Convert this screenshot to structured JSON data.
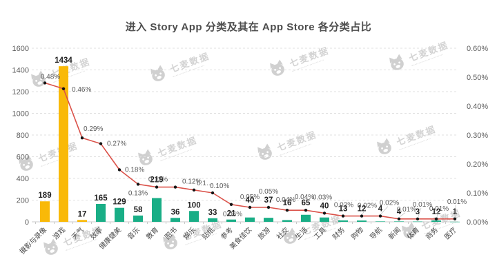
{
  "watermark": {
    "text": "七麦数据"
  },
  "chart_data": {
    "type": "bar+line",
    "title": "进入 Story App 分类及其在 App Store 各分类占比",
    "legend": "none",
    "grid": "dashed-horizontal",
    "categories": [
      "摄影与录像",
      "游戏",
      "天气",
      "效率",
      "健康健美",
      "音乐",
      "教育",
      "图书",
      "娱乐",
      "贴纸",
      "参考",
      "美食佳饮",
      "旅游",
      "社交",
      "生活",
      "工具",
      "财务",
      "购物",
      "导航",
      "新闻",
      "体育",
      "商务",
      "医疗"
    ],
    "highlighted_categories": [
      "摄影与录像",
      "游戏",
      "天气"
    ],
    "series": [
      {
        "type": "bar",
        "values": [
          189,
          1434,
          17,
          165,
          129,
          58,
          219,
          36,
          100,
          33,
          21,
          40,
          37,
          16,
          65,
          40,
          13,
          12,
          4,
          4,
          3,
          12,
          1
        ]
      },
      {
        "type": "line",
        "values": [
          0.48,
          0.46,
          0.29,
          0.27,
          0.18,
          0.13,
          0.12,
          0.12,
          0.11,
          0.1,
          0.06,
          0.05,
          0.05,
          0.04,
          0.04,
          0.03,
          0.02,
          0.02,
          0.02,
          0.01,
          0.01,
          0.01,
          0.01
        ],
        "labels": [
          "0.48%",
          "0.46%",
          "0.29%",
          "0.27%",
          "0.18%",
          "0.13%",
          "0.12%",
          "0.12%",
          "0.1…",
          "0.10%",
          "0.06%",
          "0.05%",
          "0.05%",
          "0.04%",
          "0.04%",
          "0.03%",
          "0.02%",
          "0.02%",
          "0.02%",
          "0.01%",
          "0.01%",
          "0.01%",
          "0.01%"
        ]
      }
    ],
    "left_axis": {
      "min": 0,
      "max": 1600,
      "ticks": [
        "0",
        "200",
        "400",
        "600",
        "800",
        "1000",
        "1200",
        "1400",
        "1600"
      ]
    },
    "right_axis": {
      "min": 0,
      "max": 0.6,
      "ticks": [
        "0.00%",
        "0.10%",
        "0.20%",
        "0.30%",
        "0.40%",
        "0.50%",
        "0.60%"
      ]
    },
    "colors": {
      "background": "#ffffff",
      "title": "#4d4d4d",
      "bar_highlight": "#F9B908",
      "bar_default": "#19AE86",
      "line": "#DB524A",
      "marker": "#141414",
      "grid": "#e0e0e0",
      "baseline": "#c8c8c8",
      "axis_text": "#5c5c5c",
      "value_label": "#1f1f1f",
      "pct_label": "#595959",
      "watermark": "#ababab"
    }
  }
}
